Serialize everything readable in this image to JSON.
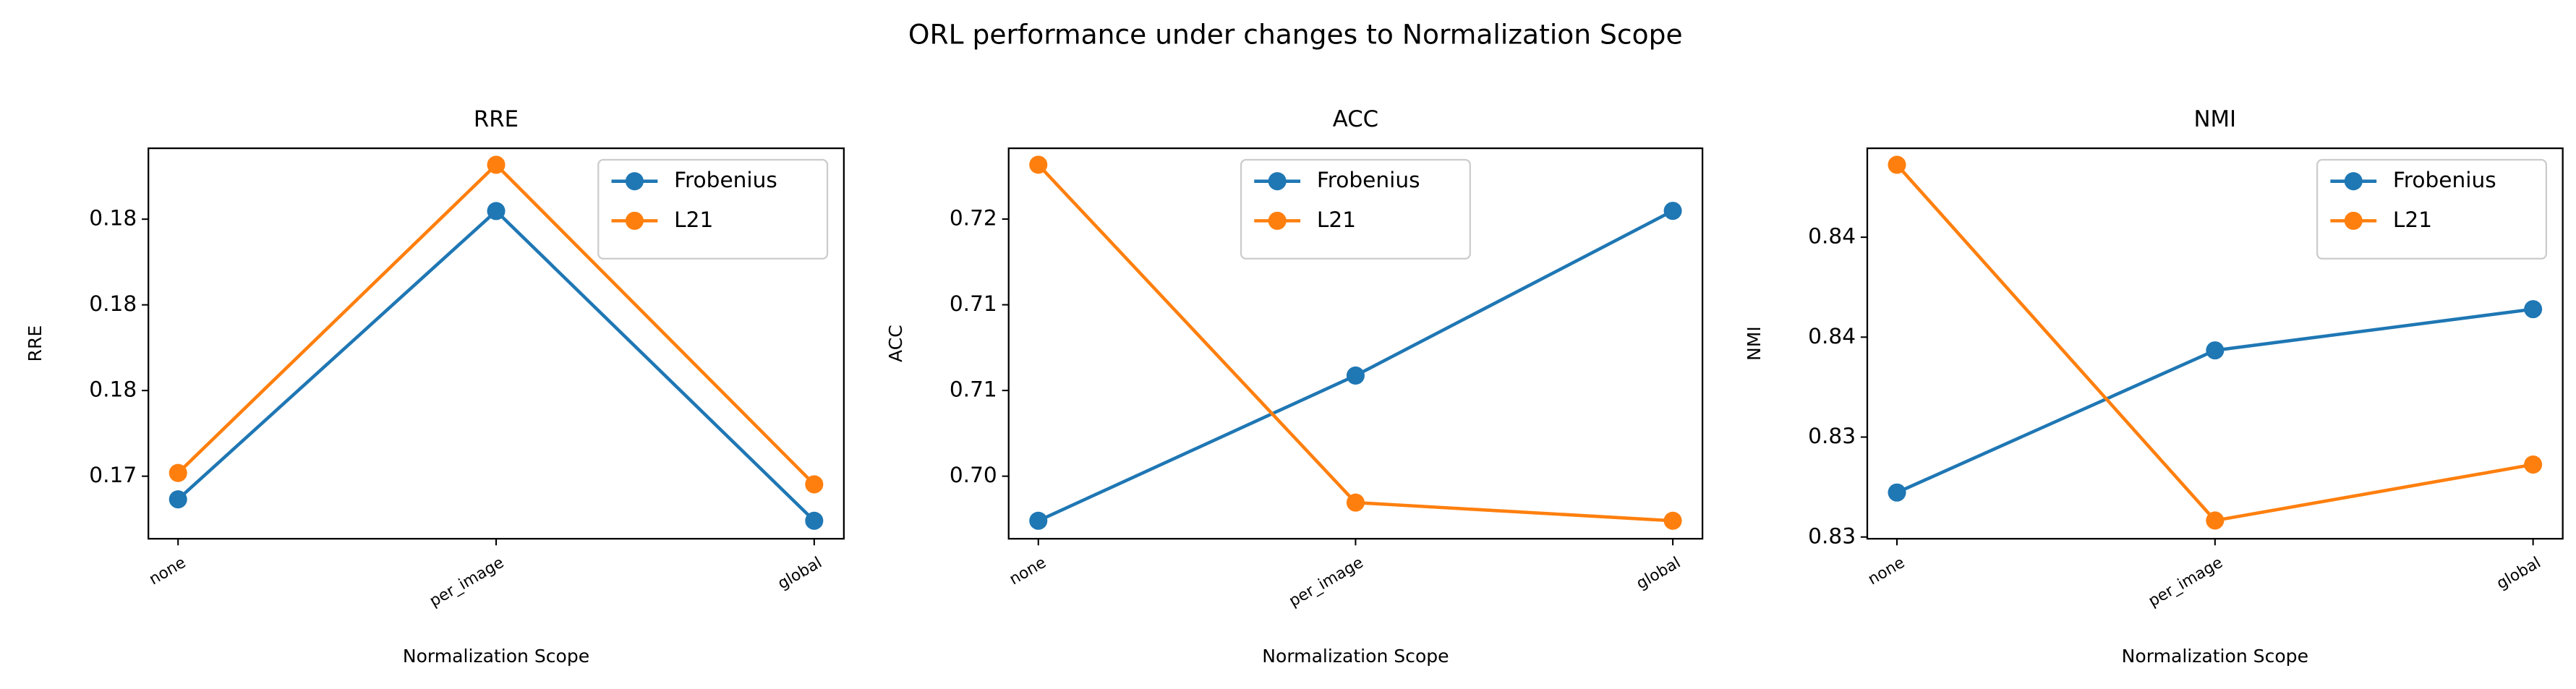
{
  "title": "ORL performance under changes to Normalization Scope",
  "chart_data": [
    {
      "type": "line",
      "title": "RRE",
      "xlabel": "Normalization Scope",
      "ylabel": "RRE",
      "categories": [
        "none",
        "per_image",
        "global"
      ],
      "series": [
        {
          "name": "Frobenius",
          "color": "#1f77b4",
          "values": [
            0.17092,
            0.18438,
            0.16992
          ]
        },
        {
          "name": "L21",
          "color": "#ff7f0e",
          "values": [
            0.17215,
            0.18654,
            0.17162
          ]
        }
      ],
      "ylim": [
        0.16908,
        0.18731
      ],
      "yticks": [
        {
          "value": 0.172,
          "label": "0.17"
        },
        {
          "value": 0.176,
          "label": "0.18"
        },
        {
          "value": 0.18,
          "label": "0.18"
        },
        {
          "value": 0.184,
          "label": "0.18"
        }
      ],
      "legend_loc": "upper right"
    },
    {
      "type": "line",
      "title": "ACC",
      "xlabel": "Normalization Scope",
      "ylabel": "ACC",
      "categories": [
        "none",
        "per_image",
        "global"
      ],
      "series": [
        {
          "name": "Frobenius",
          "color": "#1f77b4",
          "values": [
            0.6994,
            0.70787,
            0.71748
          ]
        },
        {
          "name": "L21",
          "color": "#ff7f0e",
          "values": [
            0.72017,
            0.70046,
            0.6994
          ]
        }
      ],
      "ylim": [
        0.69835,
        0.72113
      ],
      "yticks": [
        {
          "value": 0.702,
          "label": "0.70"
        },
        {
          "value": 0.707,
          "label": "0.71"
        },
        {
          "value": 0.712,
          "label": "0.71"
        },
        {
          "value": 0.717,
          "label": "0.72"
        }
      ],
      "legend_loc": "upper center"
    },
    {
      "type": "line",
      "title": "NMI",
      "xlabel": "Normalization Scope",
      "ylabel": "NMI",
      "categories": [
        "none",
        "per_image",
        "global"
      ],
      "series": [
        {
          "name": "Frobenius",
          "color": "#1f77b4",
          "values": [
            0.82978,
            0.83547,
            0.83712
          ]
        },
        {
          "name": "L21",
          "color": "#ff7f0e",
          "values": [
            0.8429,
            0.82866,
            0.8309
          ]
        }
      ],
      "ylim": [
        0.82793,
        0.84356
      ],
      "yticks": [
        {
          "value": 0.828,
          "label": "0.83"
        },
        {
          "value": 0.832,
          "label": "0.83"
        },
        {
          "value": 0.836,
          "label": "0.84"
        },
        {
          "value": 0.84,
          "label": "0.84"
        }
      ],
      "legend_loc": "upper right"
    }
  ]
}
